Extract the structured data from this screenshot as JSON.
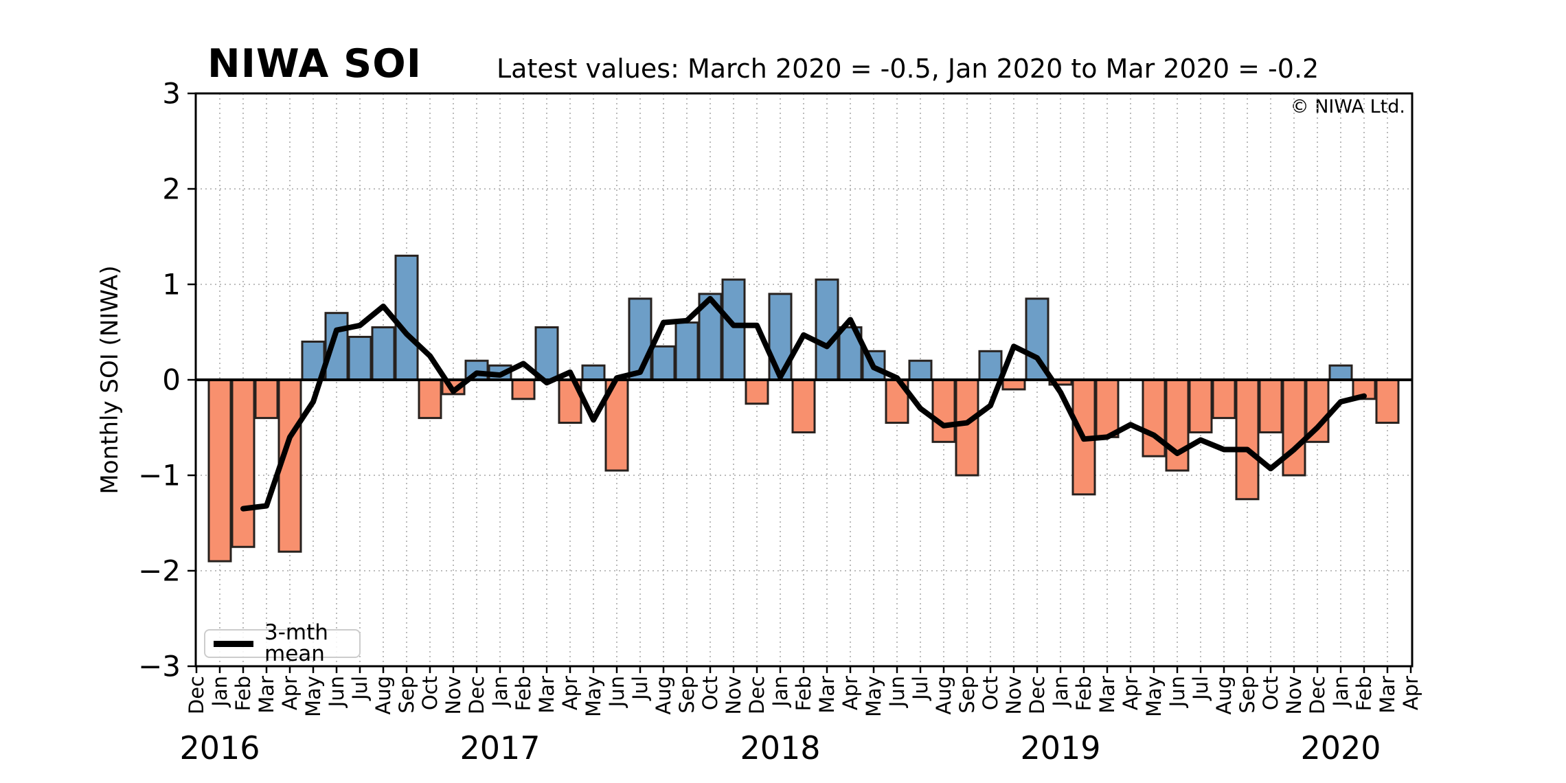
{
  "chart": {
    "title": "NIWA SOI",
    "subtitle": "Latest values: March 2020 = -0.5, Jan 2020 to Mar 2020 = -0.2",
    "copyright": "© NIWA Ltd.",
    "ylabel": "Monthly SOI (NIWA)",
    "legend_label": "3-mth mean"
  },
  "chart_data": {
    "type": "bar+line",
    "title": "NIWA SOI",
    "subtitle": "Latest values: March 2020 = -0.5, Jan 2020 to Mar 2020 = -0.2",
    "xlabel": "",
    "ylabel": "Monthly SOI (NIWA)",
    "ylim": [
      -3,
      3
    ],
    "yticks": [
      3,
      2,
      1,
      0,
      -1,
      -2,
      -3
    ],
    "grid": "dotted, vertical at every month and horizontal at integers",
    "legend": {
      "label": "3-mth mean",
      "position": "lower left"
    },
    "x_months": [
      "Dec",
      "Jan",
      "Feb",
      "Mar",
      "Apr",
      "May",
      "Jun",
      "Jul",
      "Aug",
      "Sep",
      "Oct",
      "Nov",
      "Dec",
      "Jan",
      "Feb",
      "Mar",
      "Apr",
      "May",
      "Jun",
      "Jul",
      "Aug",
      "Sep",
      "Oct",
      "Nov",
      "Dec",
      "Jan",
      "Feb",
      "Mar",
      "Apr",
      "May",
      "Jun",
      "Jul",
      "Aug",
      "Sep",
      "Oct",
      "Nov",
      "Dec",
      "Jan",
      "Feb",
      "Mar",
      "Apr",
      "May",
      "Jun",
      "Jul",
      "Aug",
      "Sep",
      "Oct",
      "Nov",
      "Dec",
      "Jan",
      "Feb",
      "Mar",
      "Apr"
    ],
    "year_labels": [
      {
        "year": "2016",
        "month_index": 1
      },
      {
        "year": "2017",
        "month_index": 13
      },
      {
        "year": "2018",
        "month_index": 25
      },
      {
        "year": "2019",
        "month_index": 37
      },
      {
        "year": "2020",
        "month_index": 49
      }
    ],
    "bar_series_name": "Monthly SOI",
    "bar_values": [
      null,
      -1.9,
      -1.75,
      -0.4,
      -1.8,
      0.4,
      0.7,
      0.45,
      0.55,
      1.3,
      -0.4,
      -0.15,
      0.2,
      0.15,
      -0.2,
      0.55,
      -0.45,
      0.15,
      -0.95,
      0.85,
      0.35,
      0.6,
      0.9,
      1.05,
      -0.25,
      0.9,
      -0.55,
      1.05,
      0.55,
      0.3,
      -0.45,
      0.2,
      -0.65,
      -1.0,
      0.3,
      -0.1,
      0.85,
      -0.05,
      -1.2,
      -0.6,
      0.0,
      -0.8,
      -0.95,
      -0.55,
      -0.4,
      -1.25,
      -0.55,
      -1.0,
      -0.65,
      0.15,
      -0.2,
      -0.45,
      null
    ],
    "line_series": {
      "name": "3-mth mean",
      "description": "centred 3-month running mean of monthly SOI",
      "values": [
        null,
        null,
        -1.35,
        -1.32,
        -0.6,
        -0.23,
        0.52,
        0.57,
        0.77,
        0.48,
        0.25,
        -0.12,
        0.07,
        0.05,
        0.17,
        -0.03,
        0.08,
        -0.42,
        0.02,
        0.08,
        0.6,
        0.62,
        0.85,
        0.57,
        0.57,
        0.03,
        0.47,
        0.35,
        0.63,
        0.13,
        0.02,
        -0.3,
        -0.48,
        -0.45,
        -0.27,
        0.35,
        0.23,
        -0.13,
        -0.62,
        -0.6,
        -0.47,
        -0.58,
        -0.77,
        -0.63,
        -0.73,
        -0.73,
        -0.93,
        -0.73,
        -0.5,
        -0.23,
        -0.17,
        null,
        null
      ]
    },
    "colors": {
      "positive_bar": "#6d9ec7",
      "negative_bar": "#f8906e",
      "bar_edge": "#27211e",
      "mean_line": "#000000",
      "grid": "#b3b3b3",
      "axis": "#000000"
    }
  }
}
